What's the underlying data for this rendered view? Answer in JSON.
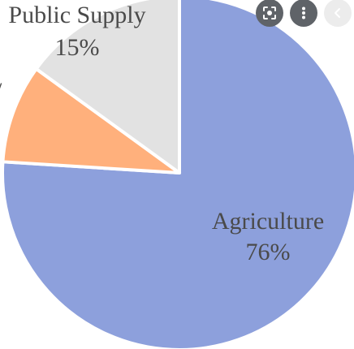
{
  "chart_data": {
    "type": "pie",
    "slices": [
      {
        "label": "Agriculture",
        "value_label": "76%",
        "value": 76,
        "color": "#8da0dc"
      },
      {
        "label": "",
        "value_label": "",
        "value": 9,
        "color": "#ffb07c"
      },
      {
        "label": "Public Supply",
        "value_label": "15%",
        "value": 15,
        "color": "#e2e2e2"
      }
    ],
    "start_at": "12 o'clock",
    "direction": "clockwise",
    "slice_border_color": "#ffffff"
  },
  "overlay_buttons": [
    {
      "icon": "lens-search-icon",
      "color": "#5f6368"
    },
    {
      "icon": "more-vertical-icon",
      "color": "#5f6368"
    },
    {
      "icon": "chevron-left-icon",
      "color": "#ececec"
    }
  ]
}
